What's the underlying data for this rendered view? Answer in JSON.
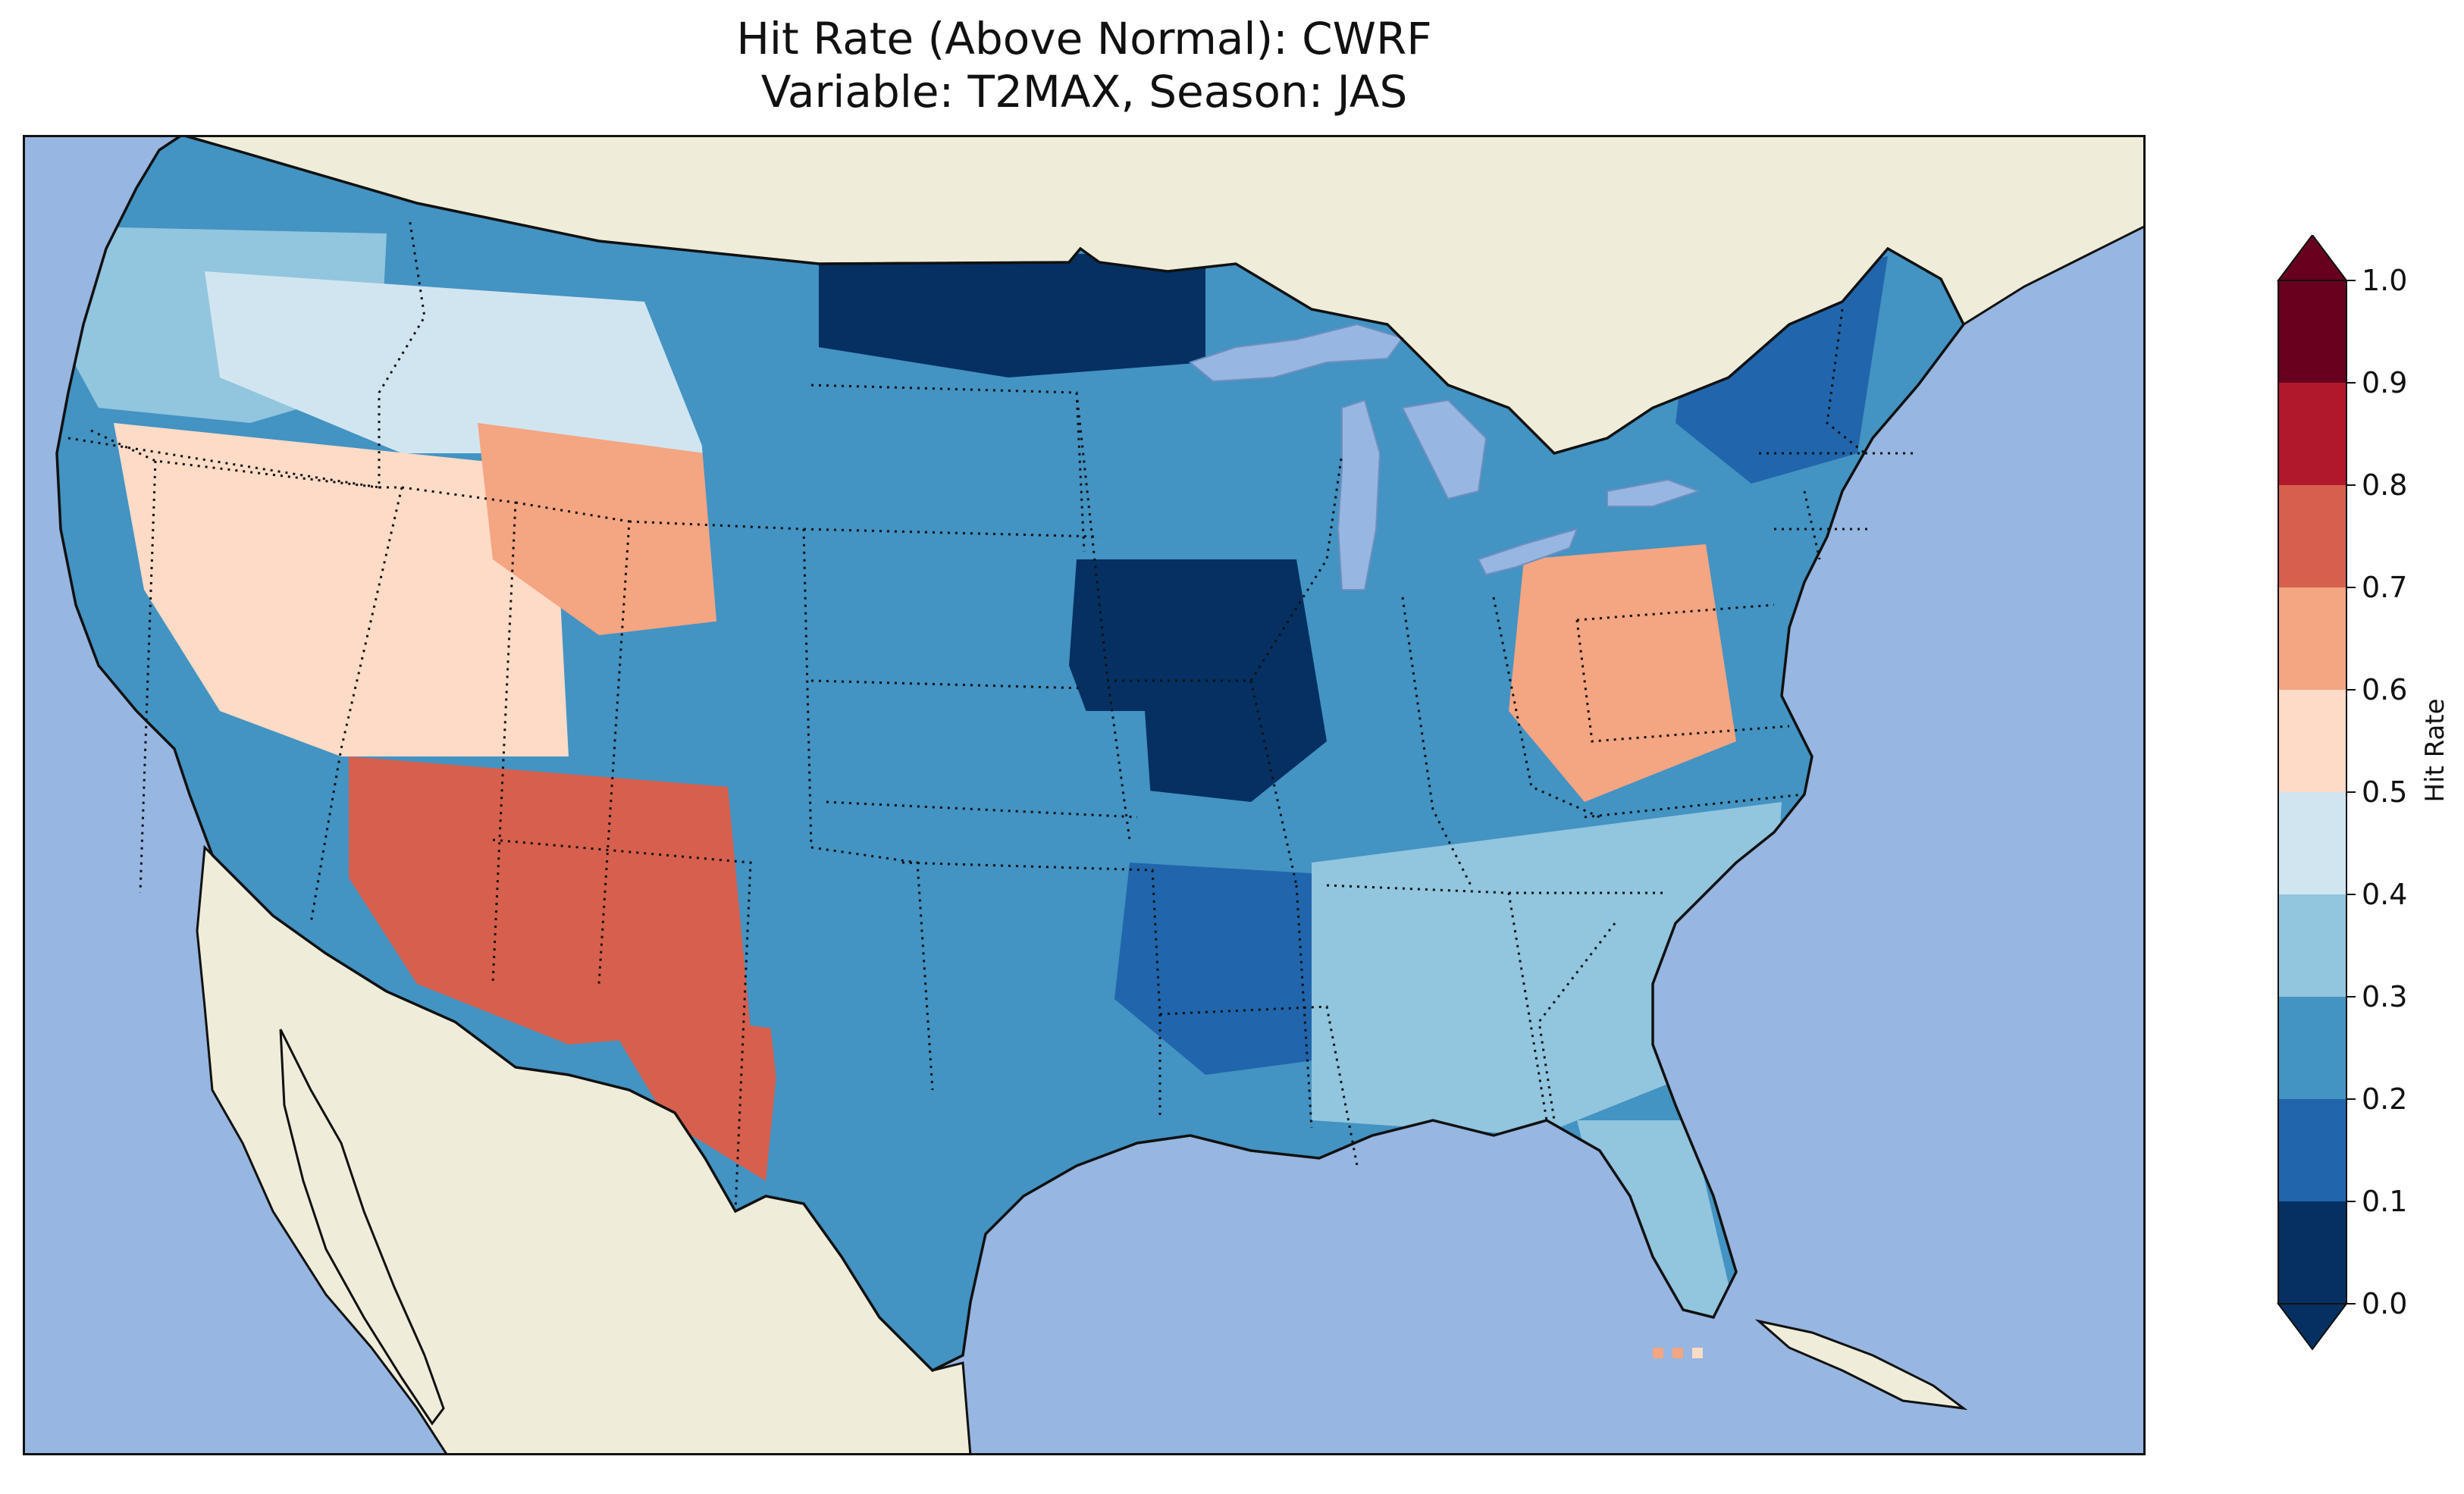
{
  "title": {
    "line1": "Hit Rate (Above Normal): CWRF",
    "line2": "Variable: T2MAX, Season: JAS"
  },
  "colorbar": {
    "label": "Hit Rate",
    "ticks": [
      "0.0",
      "0.1",
      "0.2",
      "0.3",
      "0.4",
      "0.5",
      "0.6",
      "0.7",
      "0.8",
      "0.9",
      "1.0"
    ],
    "colors": [
      "#053061",
      "#2166ac",
      "#4393c3",
      "#92c5de",
      "#d1e5f0",
      "#fddbc7",
      "#f4a582",
      "#d6604d",
      "#b2182b",
      "#67001f"
    ],
    "extend": "both"
  },
  "map": {
    "ocean_color": "#97b6e1",
    "land_color": "#efedda",
    "border_style": "dotted"
  },
  "regions": [
    {
      "name": "pacific-northwest",
      "value": 0.35
    },
    {
      "name": "northern-rockies",
      "value": 0.45
    },
    {
      "name": "nevada-utah",
      "value": 0.55
    },
    {
      "name": "wyoming",
      "value": 0.62
    },
    {
      "name": "southwest",
      "value": 0.75
    },
    {
      "name": "west-texas",
      "value": 0.75
    },
    {
      "name": "northern-plains",
      "value": 0.25
    },
    {
      "name": "minnesota",
      "value": 0.05
    },
    {
      "name": "midwest-core",
      "value": 0.05
    },
    {
      "name": "southern-plains",
      "value": 0.25
    },
    {
      "name": "lower-mississippi",
      "value": 0.15
    },
    {
      "name": "southeast",
      "value": 0.35
    },
    {
      "name": "appalachians",
      "value": 0.62
    },
    {
      "name": "new-england",
      "value": 0.15
    },
    {
      "name": "florida",
      "value": 0.35
    }
  ]
}
